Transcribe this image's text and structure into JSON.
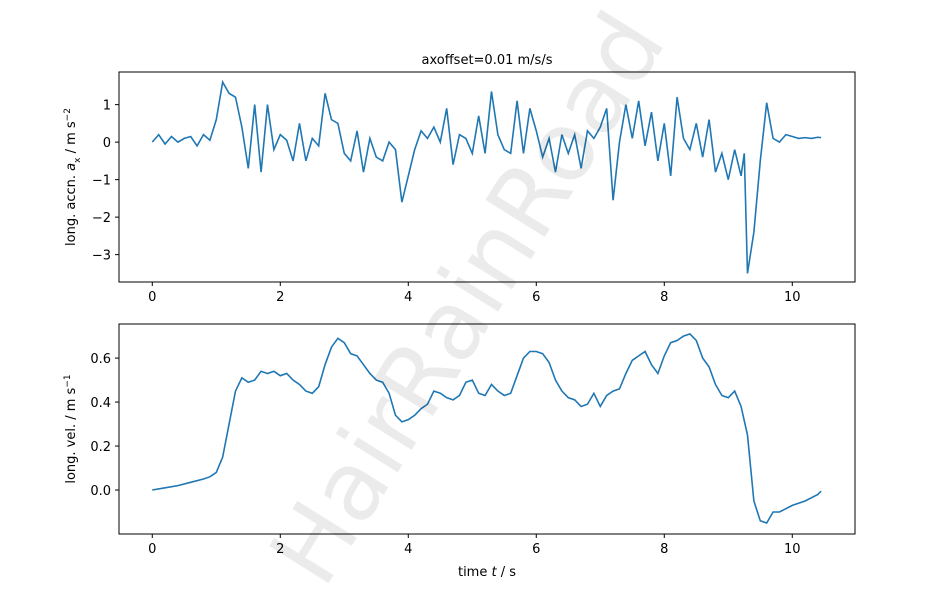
{
  "watermark": "HairRainRoad",
  "chart_data": [
    {
      "type": "line",
      "title": "axoffset=0.01 m/s/s",
      "ylabel": [
        {
          "text": "long. accn. "
        },
        {
          "text": "a",
          "style": "italic"
        },
        {
          "text": "x",
          "style": "sub"
        },
        {
          "text": " / m s"
        },
        {
          "text": "−2",
          "style": "sup"
        }
      ],
      "color": "#1f77b4",
      "xlim": [
        -0.52,
        10.98
      ],
      "ylim": [
        -3.73,
        1.87
      ],
      "xticks": [
        0,
        2,
        4,
        6,
        8,
        10
      ],
      "yticks": [
        {
          "value": -3,
          "label": "−3"
        },
        {
          "value": -2,
          "label": "−2"
        },
        {
          "value": -1,
          "label": "−1"
        },
        0,
        1
      ],
      "x": [
        0,
        0.1,
        0.2,
        0.3,
        0.4,
        0.5,
        0.6,
        0.7,
        0.8,
        0.9,
        1.0,
        1.1,
        1.2,
        1.3,
        1.4,
        1.5,
        1.6,
        1.7,
        1.8,
        1.9,
        2.0,
        2.1,
        2.2,
        2.3,
        2.4,
        2.5,
        2.6,
        2.7,
        2.8,
        2.9,
        3.0,
        3.1,
        3.2,
        3.3,
        3.4,
        3.5,
        3.6,
        3.7,
        3.8,
        3.9,
        4.0,
        4.1,
        4.2,
        4.3,
        4.4,
        4.5,
        4.6,
        4.7,
        4.8,
        4.9,
        5.0,
        5.1,
        5.2,
        5.3,
        5.4,
        5.5,
        5.6,
        5.7,
        5.8,
        5.9,
        6.0,
        6.1,
        6.2,
        6.3,
        6.4,
        6.5,
        6.6,
        6.7,
        6.8,
        6.9,
        7.0,
        7.1,
        7.2,
        7.3,
        7.4,
        7.5,
        7.6,
        7.7,
        7.8,
        7.9,
        8.0,
        8.1,
        8.2,
        8.3,
        8.4,
        8.5,
        8.6,
        8.7,
        8.8,
        8.9,
        9.0,
        9.1,
        9.2,
        9.25,
        9.3,
        9.4,
        9.5,
        9.6,
        9.7,
        9.8,
        9.9,
        10.0,
        10.1,
        10.2,
        10.3,
        10.4,
        10.45
      ],
      "values": [
        0,
        0.2,
        -0.05,
        0.15,
        0.0,
        0.1,
        0.15,
        -0.1,
        0.2,
        0.05,
        0.6,
        1.6,
        1.3,
        1.2,
        0.4,
        -0.7,
        1.0,
        -0.8,
        1.0,
        -0.2,
        0.2,
        0.05,
        -0.5,
        0.5,
        -0.5,
        0.1,
        -0.1,
        1.3,
        0.6,
        0.5,
        -0.3,
        -0.5,
        0.3,
        -0.8,
        0.1,
        -0.4,
        -0.5,
        0.0,
        -0.2,
        -1.6,
        -0.9,
        -0.2,
        0.3,
        0.1,
        0.4,
        0.0,
        0.9,
        -0.6,
        0.2,
        0.1,
        -0.3,
        0.7,
        -0.3,
        1.35,
        0.2,
        -0.2,
        -0.3,
        1.1,
        -0.3,
        0.9,
        0.3,
        -0.4,
        0.1,
        -0.8,
        0.2,
        -0.3,
        0.2,
        -0.7,
        0.3,
        0.1,
        0.4,
        0.9,
        -1.55,
        0.0,
        1.0,
        0.1,
        1.1,
        -0.1,
        0.8,
        -0.5,
        0.5,
        -0.9,
        1.2,
        0.1,
        -0.2,
        0.5,
        -0.4,
        0.6,
        -0.8,
        -0.3,
        -1.0,
        -0.2,
        -0.9,
        -0.3,
        -3.5,
        -2.4,
        -0.5,
        1.05,
        0.1,
        0.0,
        0.2,
        0.15,
        0.1,
        0.12,
        0.1,
        0.13,
        0.12
      ]
    },
    {
      "type": "line",
      "xlabel": [
        {
          "text": "time "
        },
        {
          "text": "t",
          "style": "italic"
        },
        {
          "text": " / s"
        }
      ],
      "ylabel": [
        {
          "text": "long. vel. / m s"
        },
        {
          "text": "−1",
          "style": "sup"
        }
      ],
      "color": "#1f77b4",
      "xlim": [
        -0.52,
        10.98
      ],
      "ylim": [
        -0.2,
        0.755
      ],
      "xticks": [
        0,
        2,
        4,
        6,
        8,
        10
      ],
      "yticks": [
        {
          "value": 0,
          "label": "0.0"
        },
        0.2,
        0.4,
        0.6
      ],
      "x": [
        0,
        0.2,
        0.4,
        0.6,
        0.8,
        0.9,
        1.0,
        1.1,
        1.2,
        1.3,
        1.4,
        1.5,
        1.6,
        1.7,
        1.8,
        1.9,
        2.0,
        2.1,
        2.2,
        2.3,
        2.4,
        2.5,
        2.6,
        2.7,
        2.8,
        2.9,
        3.0,
        3.1,
        3.2,
        3.3,
        3.4,
        3.5,
        3.6,
        3.7,
        3.8,
        3.9,
        4.0,
        4.1,
        4.2,
        4.3,
        4.4,
        4.5,
        4.6,
        4.7,
        4.8,
        4.9,
        5.0,
        5.1,
        5.2,
        5.3,
        5.4,
        5.5,
        5.6,
        5.7,
        5.8,
        5.9,
        6.0,
        6.1,
        6.2,
        6.3,
        6.4,
        6.5,
        6.6,
        6.7,
        6.8,
        6.9,
        7.0,
        7.1,
        7.2,
        7.3,
        7.4,
        7.5,
        7.6,
        7.7,
        7.8,
        7.9,
        8.0,
        8.1,
        8.2,
        8.3,
        8.4,
        8.5,
        8.6,
        8.7,
        8.8,
        8.9,
        9.0,
        9.1,
        9.2,
        9.3,
        9.4,
        9.5,
        9.6,
        9.7,
        9.8,
        9.9,
        10.0,
        10.2,
        10.4,
        10.45
      ],
      "values": [
        0,
        0.01,
        0.02,
        0.035,
        0.05,
        0.06,
        0.08,
        0.15,
        0.3,
        0.45,
        0.51,
        0.49,
        0.5,
        0.54,
        0.53,
        0.54,
        0.52,
        0.53,
        0.5,
        0.48,
        0.45,
        0.44,
        0.47,
        0.57,
        0.65,
        0.69,
        0.67,
        0.62,
        0.61,
        0.57,
        0.53,
        0.5,
        0.49,
        0.44,
        0.34,
        0.31,
        0.32,
        0.34,
        0.37,
        0.39,
        0.45,
        0.44,
        0.42,
        0.41,
        0.43,
        0.49,
        0.5,
        0.44,
        0.43,
        0.48,
        0.45,
        0.43,
        0.44,
        0.52,
        0.6,
        0.63,
        0.63,
        0.62,
        0.58,
        0.5,
        0.45,
        0.42,
        0.41,
        0.38,
        0.39,
        0.44,
        0.38,
        0.43,
        0.45,
        0.46,
        0.53,
        0.59,
        0.61,
        0.63,
        0.57,
        0.53,
        0.61,
        0.67,
        0.68,
        0.7,
        0.71,
        0.68,
        0.6,
        0.56,
        0.48,
        0.43,
        0.42,
        0.45,
        0.38,
        0.25,
        -0.05,
        -0.14,
        -0.15,
        -0.1,
        -0.1,
        -0.085,
        -0.07,
        -0.05,
        -0.02,
        -0.005
      ]
    }
  ]
}
